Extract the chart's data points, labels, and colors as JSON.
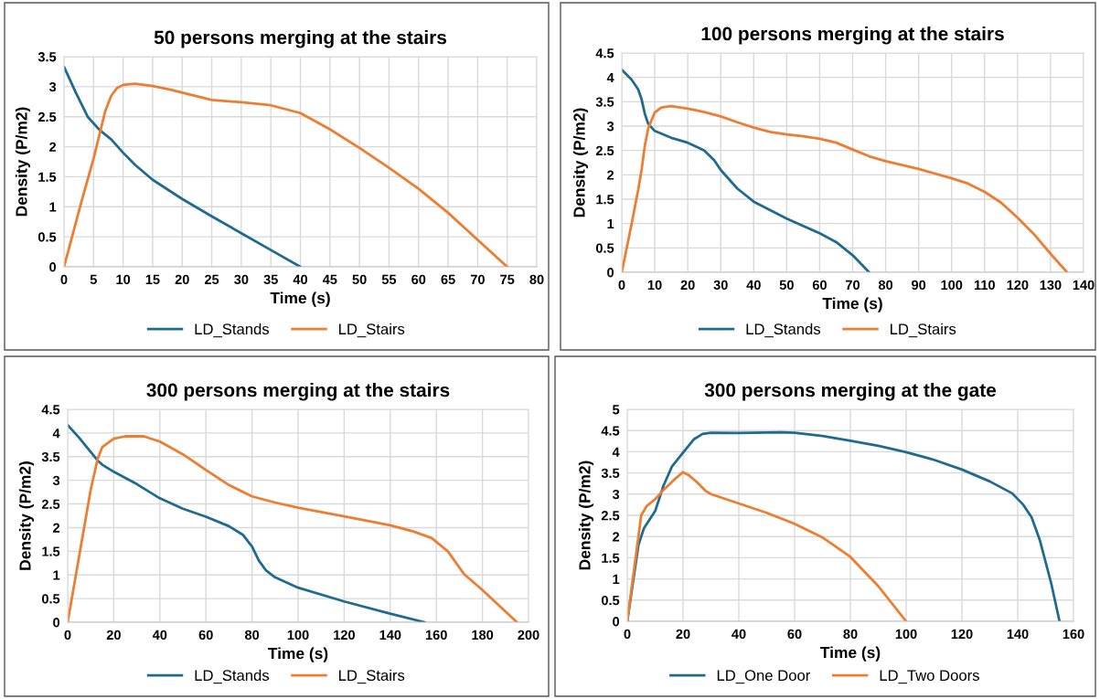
{
  "chart_data": [
    {
      "type": "line",
      "title": "50 persons merging at the stairs",
      "xlabel": "Time (s)",
      "ylabel": "Density (P/m2)",
      "xlim": [
        0,
        80
      ],
      "xticks": [
        0,
        5,
        10,
        15,
        20,
        25,
        30,
        35,
        40,
        45,
        50,
        55,
        60,
        65,
        70,
        75,
        80
      ],
      "ylim": [
        0,
        3.5
      ],
      "yticks": [
        0,
        0.5,
        1,
        1.5,
        2,
        2.5,
        3,
        3.5
      ],
      "grid": true,
      "legend": "bottom",
      "marker": "none",
      "line_style": "solid",
      "series": [
        {
          "name": "LD_Stands",
          "color": "#1f6b8f",
          "x": [
            0,
            2,
            4,
            6,
            8,
            10,
            12,
            15,
            20,
            25,
            30,
            35,
            40
          ],
          "values": [
            3.33,
            2.9,
            2.5,
            2.28,
            2.12,
            1.9,
            1.7,
            1.45,
            1.13,
            0.84,
            0.56,
            0.28,
            0
          ]
        },
        {
          "name": "LD_Stairs",
          "color": "#ed7d31",
          "x": [
            0,
            3,
            5,
            6,
            7,
            8,
            9,
            10,
            12,
            15,
            18,
            20,
            25,
            30,
            35,
            40,
            45,
            50,
            55,
            60,
            65,
            70,
            75
          ],
          "values": [
            0,
            1.1,
            1.8,
            2.2,
            2.6,
            2.85,
            2.98,
            3.03,
            3.05,
            3.01,
            2.95,
            2.9,
            2.78,
            2.74,
            2.69,
            2.56,
            2.29,
            1.98,
            1.65,
            1.3,
            0.9,
            0.45,
            0
          ]
        }
      ]
    },
    {
      "type": "line",
      "title": "100 persons merging at the stairs",
      "xlabel": "Time (s)",
      "ylabel": "Density (P/m2)",
      "xlim": [
        0,
        140
      ],
      "xticks": [
        0,
        10,
        20,
        30,
        40,
        50,
        60,
        70,
        80,
        90,
        100,
        110,
        120,
        130,
        140
      ],
      "ylim": [
        0,
        4.5
      ],
      "yticks": [
        0,
        0.5,
        1,
        1.5,
        2,
        2.5,
        3,
        3.5,
        4,
        4.5
      ],
      "grid": true,
      "legend": "bottom",
      "marker": "none",
      "line_style": "solid",
      "series": [
        {
          "name": "LD_Stands",
          "color": "#1f6b8f",
          "x": [
            0,
            3,
            5,
            6,
            7,
            8,
            10,
            15,
            20,
            25,
            28,
            30,
            35,
            40,
            50,
            60,
            65,
            70,
            75
          ],
          "values": [
            4.16,
            3.95,
            3.75,
            3.55,
            3.25,
            3.05,
            2.9,
            2.76,
            2.66,
            2.5,
            2.3,
            2.1,
            1.72,
            1.45,
            1.1,
            0.8,
            0.62,
            0.35,
            0
          ]
        },
        {
          "name": "LD_Stairs",
          "color": "#ed7d31",
          "x": [
            0,
            3,
            5,
            6,
            7,
            8,
            10,
            12,
            15,
            20,
            25,
            30,
            35,
            40,
            45,
            50,
            55,
            60,
            65,
            70,
            75,
            80,
            90,
            100,
            105,
            110,
            115,
            120,
            125,
            130,
            135
          ],
          "values": [
            0,
            1.0,
            1.7,
            2.1,
            2.6,
            2.95,
            3.28,
            3.38,
            3.41,
            3.36,
            3.29,
            3.2,
            3.08,
            2.97,
            2.88,
            2.83,
            2.79,
            2.74,
            2.66,
            2.52,
            2.38,
            2.28,
            2.12,
            1.93,
            1.82,
            1.65,
            1.43,
            1.12,
            0.78,
            0.38,
            0
          ]
        }
      ]
    },
    {
      "type": "line",
      "title": "300 persons merging at the stairs",
      "xlabel": "Time (s)",
      "ylabel": "Density (P/m2)",
      "xlim": [
        0,
        200
      ],
      "xticks": [
        0,
        20,
        40,
        60,
        80,
        100,
        120,
        140,
        160,
        180,
        200
      ],
      "ylim": [
        0,
        4.5
      ],
      "yticks": [
        0,
        0.5,
        1,
        1.5,
        2,
        2.5,
        3,
        3.5,
        4,
        4.5
      ],
      "grid": true,
      "legend": "bottom",
      "marker": "none",
      "line_style": "solid",
      "series": [
        {
          "name": "LD_Stands",
          "color": "#1f6b8f",
          "x": [
            0,
            5,
            10,
            13,
            15,
            20,
            30,
            40,
            50,
            60,
            70,
            76,
            80,
            83,
            86,
            90,
            100,
            120,
            140,
            155
          ],
          "values": [
            4.17,
            3.9,
            3.6,
            3.42,
            3.33,
            3.18,
            2.92,
            2.62,
            2.4,
            2.23,
            2.03,
            1.85,
            1.6,
            1.3,
            1.1,
            0.95,
            0.73,
            0.44,
            0.18,
            0
          ]
        },
        {
          "name": "LD_Stairs",
          "color": "#ed7d31",
          "x": [
            0,
            5,
            10,
            13,
            15,
            20,
            25,
            33,
            40,
            50,
            60,
            70,
            80,
            90,
            100,
            120,
            140,
            150,
            158,
            165,
            172,
            180,
            195
          ],
          "values": [
            0,
            1.4,
            2.8,
            3.45,
            3.7,
            3.88,
            3.93,
            3.93,
            3.82,
            3.55,
            3.22,
            2.9,
            2.66,
            2.53,
            2.42,
            2.24,
            2.05,
            1.92,
            1.78,
            1.5,
            1.02,
            0.68,
            0
          ]
        }
      ]
    },
    {
      "type": "line",
      "title": "300 persons merging at the gate",
      "xlabel": "Time (s)",
      "ylabel": "Density (P/m2)",
      "xlim": [
        0,
        160
      ],
      "xticks": [
        0,
        20,
        40,
        60,
        80,
        100,
        120,
        140,
        160
      ],
      "ylim": [
        0,
        5
      ],
      "yticks": [
        0,
        0.5,
        1,
        1.5,
        2,
        2.5,
        3,
        3.5,
        4,
        4.5,
        5
      ],
      "grid": true,
      "legend": "bottom",
      "marker": "none",
      "line_style": "solid",
      "series": [
        {
          "name": "LD_One Door",
          "color": "#1f6b8f",
          "x": [
            0,
            4,
            6,
            10,
            13,
            16,
            20,
            24,
            27,
            30,
            40,
            55,
            60,
            70,
            80,
            90,
            100,
            110,
            120,
            130,
            138,
            142,
            145,
            148,
            152,
            155
          ],
          "values": [
            0,
            1.8,
            2.2,
            2.6,
            3.2,
            3.65,
            3.98,
            4.3,
            4.42,
            4.45,
            4.44,
            4.46,
            4.45,
            4.37,
            4.26,
            4.14,
            3.99,
            3.81,
            3.58,
            3.3,
            3.02,
            2.75,
            2.45,
            1.9,
            0.9,
            0
          ]
        },
        {
          "name": "LD_Two Doors",
          "color": "#ed7d31",
          "x": [
            0,
            3,
            5,
            7,
            10,
            13,
            17,
            20,
            22,
            25,
            28,
            30,
            40,
            50,
            60,
            70,
            80,
            90,
            100
          ],
          "values": [
            0,
            1.5,
            2.5,
            2.72,
            2.88,
            3.1,
            3.35,
            3.52,
            3.45,
            3.28,
            3.08,
            3.0,
            2.78,
            2.56,
            2.3,
            1.98,
            1.52,
            0.83,
            0
          ]
        }
      ]
    }
  ]
}
